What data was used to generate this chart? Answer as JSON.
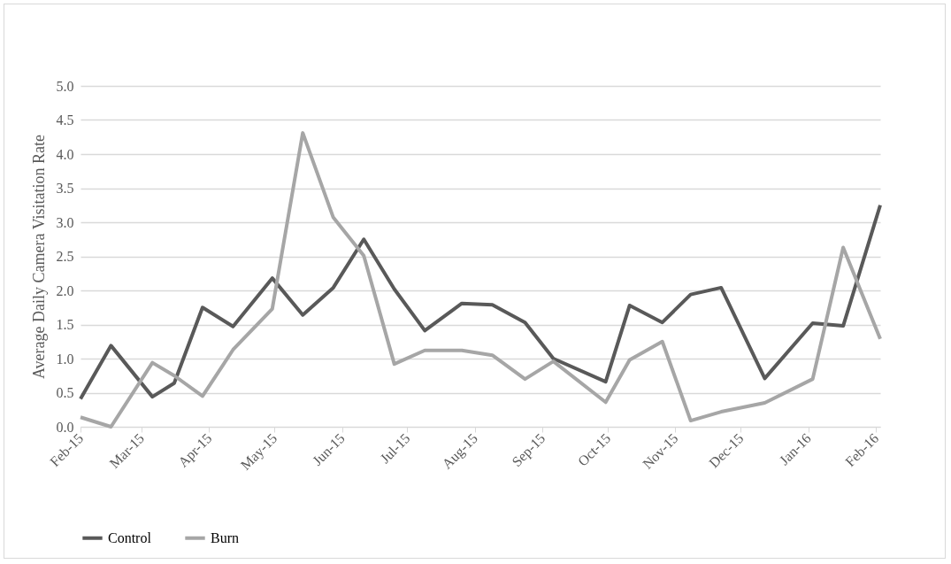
{
  "chart_data": {
    "type": "line",
    "ylabel": "Average Daily Camera Visitation Rate",
    "x": [
      "2015-02-01",
      "2015-02-15",
      "2015-03-06",
      "2015-03-16",
      "2015-03-29",
      "2015-04-12",
      "2015-04-30",
      "2015-05-14",
      "2015-05-28",
      "2015-06-11",
      "2015-06-25",
      "2015-07-09",
      "2015-07-26",
      "2015-08-09",
      "2015-08-24",
      "2015-09-06",
      "2015-09-30",
      "2015-10-11",
      "2015-10-26",
      "2015-11-08",
      "2015-11-22",
      "2015-12-12",
      "2016-01-03",
      "2016-01-17",
      "2016-02-03"
    ],
    "series": [
      {
        "name": "Control",
        "color": "#595959",
        "values": [
          0.41,
          1.19,
          0.44,
          0.64,
          1.75,
          1.47,
          2.18,
          1.64,
          2.04,
          2.75,
          2.02,
          1.41,
          1.81,
          1.79,
          1.53,
          1.0,
          0.66,
          1.78,
          1.53,
          1.94,
          2.04,
          0.71,
          1.52,
          1.48,
          3.25
        ]
      },
      {
        "name": "Burn",
        "color": "#a6a6a6",
        "values": [
          0.14,
          0.0,
          0.94,
          0.75,
          0.45,
          1.13,
          1.73,
          4.31,
          3.07,
          2.51,
          0.92,
          1.12,
          1.12,
          1.05,
          0.7,
          0.96,
          0.36,
          0.98,
          1.25,
          0.09,
          0.22,
          0.35,
          0.7,
          2.63,
          1.29
        ]
      }
    ],
    "xlim": [
      "2015-02-01",
      "2016-02-03"
    ],
    "xticks": [
      {
        "value": "2015-02-01",
        "label": "Feb-15"
      },
      {
        "value": "2015-03-01",
        "label": "Mar-15"
      },
      {
        "value": "2015-04-01",
        "label": "Apr-15"
      },
      {
        "value": "2015-05-01",
        "label": "May-15"
      },
      {
        "value": "2015-06-01",
        "label": "Jun-15"
      },
      {
        "value": "2015-07-01",
        "label": "Jul-15"
      },
      {
        "value": "2015-08-01",
        "label": "Aug-15"
      },
      {
        "value": "2015-09-01",
        "label": "Sep-15"
      },
      {
        "value": "2015-10-01",
        "label": "Oct-15"
      },
      {
        "value": "2015-11-01",
        "label": "Nov-15"
      },
      {
        "value": "2015-12-01",
        "label": "Dec-15"
      },
      {
        "value": "2016-01-01",
        "label": "Jan-16"
      },
      {
        "value": "2016-02-01",
        "label": "Feb-16"
      }
    ],
    "ylim": [
      0,
      5
    ],
    "yticks": [
      {
        "value": 0,
        "label": "0.0"
      },
      {
        "value": 0.5,
        "label": "0.5"
      },
      {
        "value": 1,
        "label": "1.0"
      },
      {
        "value": 1.5,
        "label": "1.5"
      },
      {
        "value": 2,
        "label": "2.0"
      },
      {
        "value": 2.5,
        "label": "2.5"
      },
      {
        "value": 3,
        "label": "3.0"
      },
      {
        "value": 3.5,
        "label": "3.5"
      },
      {
        "value": 4,
        "label": "4.0"
      },
      {
        "value": 4.5,
        "label": "4.5"
      },
      {
        "value": 5,
        "label": "5.0"
      }
    ],
    "grid": "y",
    "legend": "bottom",
    "marker": "none",
    "line_style": "solid"
  }
}
